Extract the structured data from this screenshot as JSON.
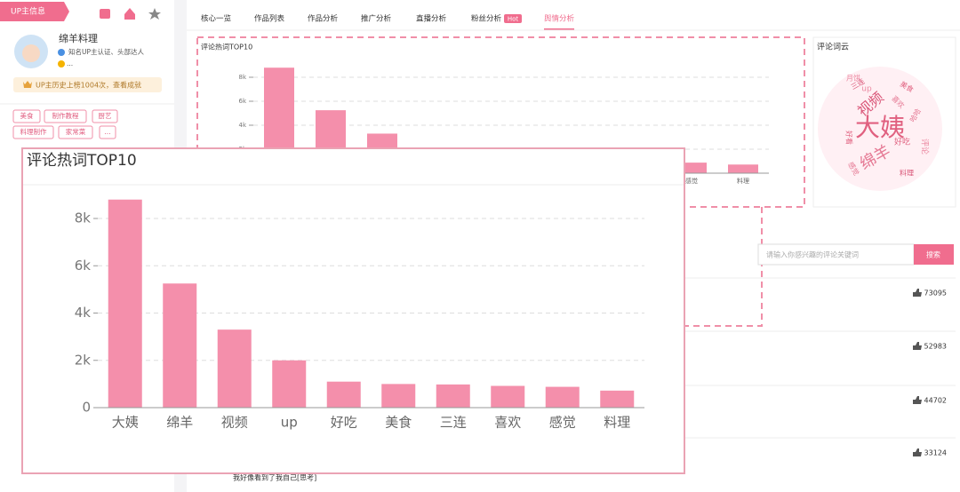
{
  "sidebar": {
    "tag": "UP主信息",
    "name": "绵羊料理",
    "verify": "知名UP主认证、头部达人",
    "more": "...",
    "badge": "UP主历史上榜1004次，查看成就",
    "tags": [
      "美食",
      "制作教程",
      "厨艺",
      "料理制作",
      "家常菜",
      "..."
    ]
  },
  "tabs": [
    {
      "label": "核心一览"
    },
    {
      "label": "作品列表"
    },
    {
      "label": "作品分析"
    },
    {
      "label": "推广分析"
    },
    {
      "label": "直播分析"
    },
    {
      "label": "粉丝分析",
      "badge": "Hot"
    },
    {
      "label": "舆情分析",
      "active": true
    }
  ],
  "chart_data": {
    "type": "bar",
    "title": "评论热词TOP10",
    "categories": [
      "大姨",
      "绵羊",
      "视频",
      "up",
      "好吃",
      "美食",
      "三连",
      "喜欢",
      "感觉",
      "料理"
    ],
    "values": [
      8800,
      5250,
      3300,
      2000,
      1100,
      1000,
      980,
      920,
      880,
      720
    ],
    "color": "#f48fab",
    "ylim": [
      0,
      9000
    ],
    "yticks": [
      0,
      {
        "value": 2000,
        "label": "2k"
      },
      {
        "value": 4000,
        "label": "4k"
      },
      {
        "value": 6000,
        "label": "6k"
      },
      {
        "value": 8000,
        "label": "8k"
      }
    ],
    "grid": true
  },
  "word_cloud": {
    "title": "评论词云",
    "words": [
      "大姨",
      "绵羊",
      "视频",
      "评论",
      "好吃",
      "喜欢",
      "三连",
      "up",
      "美食",
      "感觉",
      "料理",
      "月饼",
      "好看",
      "哈哈"
    ]
  },
  "search": {
    "placeholder": "请输入你感兴趣的评论关键词",
    "button": "搜索"
  },
  "comments": [
    {
      "likes": 73095
    },
    {
      "likes": 52983
    },
    {
      "likes": 44702
    },
    {
      "likes": 33124,
      "text": "我好像看到了我自己[思考]"
    }
  ]
}
